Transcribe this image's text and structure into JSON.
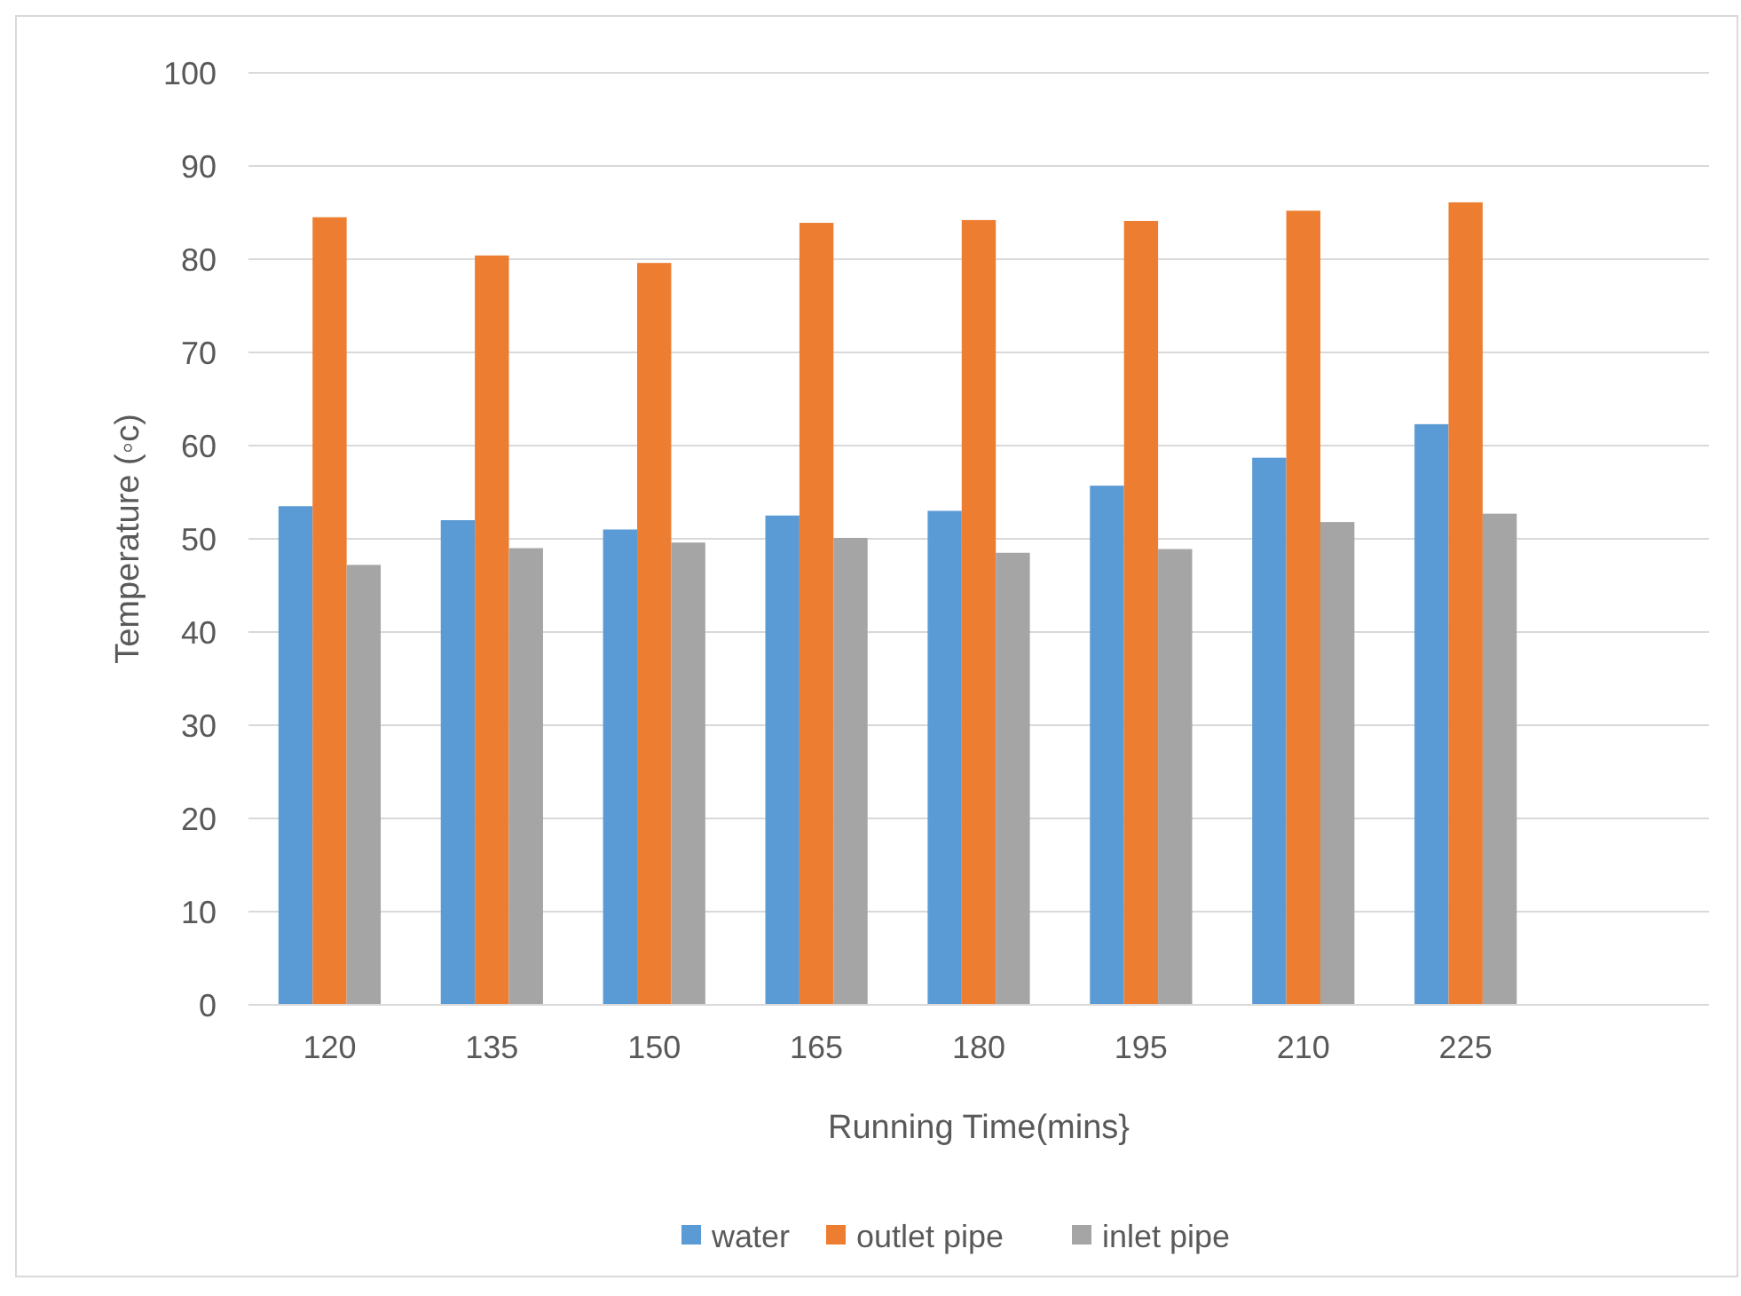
{
  "chart_data": {
    "type": "bar",
    "xlabel": "Running Time(mins}",
    "ylabel": "Temperature (◦c)",
    "categories": [
      "120",
      "135",
      "150",
      "165",
      "180",
      "195",
      "210",
      "225",
      null
    ],
    "series": [
      {
        "name": "water",
        "color": "#5b9bd5",
        "values": [
          53.5,
          52,
          51,
          52.5,
          53,
          55.7,
          58.7,
          62.3,
          null
        ]
      },
      {
        "name": "outlet pipe",
        "color": "#ed7d31",
        "values": [
          84.5,
          80.4,
          79.6,
          83.9,
          84.2,
          84.1,
          85.2,
          86.1,
          null
        ]
      },
      {
        "name": "inlet pipe",
        "color": "#a5a5a5",
        "values": [
          47.2,
          49,
          49.6,
          50.1,
          48.5,
          48.9,
          51.8,
          52.7,
          null
        ]
      }
    ],
    "ylim": [
      0,
      100
    ],
    "yticks": [
      0,
      10,
      20,
      30,
      40,
      50,
      60,
      70,
      80,
      90,
      100
    ],
    "grid": "y",
    "legend": "bottom"
  }
}
